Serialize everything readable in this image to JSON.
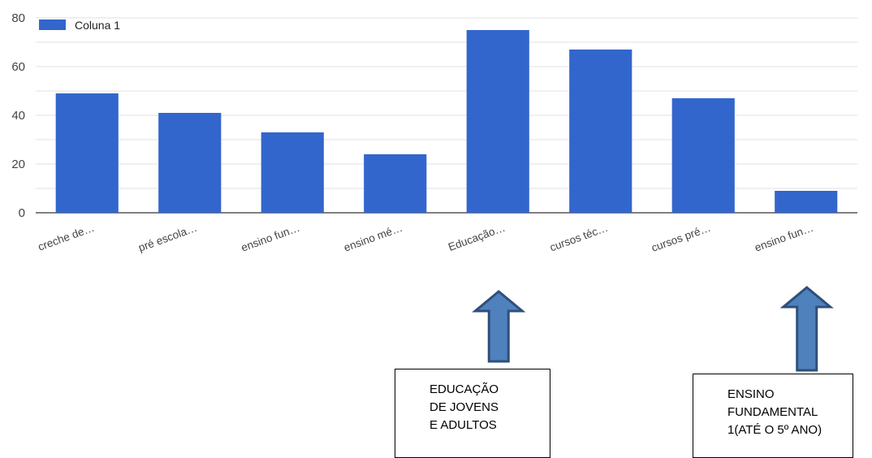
{
  "chart_data": {
    "type": "bar",
    "categories": [
      "creche de…",
      "pré escola…",
      "ensino fun…",
      "ensino mé…",
      "Educação…",
      "cursos téc…",
      "cursos pré…",
      "ensino fun…"
    ],
    "series": [
      {
        "name": "Coluna 1",
        "values": [
          49,
          41,
          33,
          24,
          75,
          67,
          47,
          9
        ]
      }
    ],
    "yticks": [
      "0",
      "20",
      "40",
      "60",
      "80"
    ],
    "ylim": [
      0,
      80
    ],
    "grid": true,
    "legend": "top-left",
    "color": "#3366cc"
  },
  "annotations": [
    {
      "target_category_index": 4,
      "lines": [
        "EDUCAÇÃO",
        "DE JOVENS",
        "E ADULTOS"
      ]
    },
    {
      "target_category_index": 7,
      "lines": [
        "ENSINO",
        "FUNDAMENTAL",
        "1(ATÉ O 5º ANO)"
      ]
    }
  ],
  "colors": {
    "bar": "#3366cc",
    "arrow_fill": "#4f81bd",
    "arrow_stroke": "#2f4f7a",
    "grid": "#e0e0e0",
    "axis": "#333333"
  }
}
